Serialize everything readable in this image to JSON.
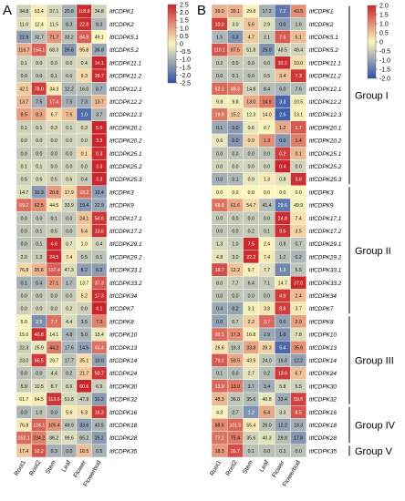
{
  "chart_data": [
    {
      "type": "heatmap",
      "panel_label": "A",
      "columns": [
        "Root1",
        "Root2",
        "Stem",
        "Leaf",
        "Flower",
        "Flowerbud"
      ],
      "rows": [
        "ItfCDPK1",
        "ItfCDPK2",
        "ItfCDPK5.1",
        "ItfCDPK5.2",
        "ItfCDPK11.1",
        "ItfCDPK11.2",
        "ItfCDPK12.1",
        "ItfCDPK12.2",
        "ItfCDPK12.3",
        "ItfCDPK20.1",
        "ItfCDPK20.2",
        "ItfCDPK25.1",
        "ItfCDPK25.2",
        "ItfCDPK25.3",
        "ItfCDPK3",
        "ItfCDPK9",
        "ItfCDPK17.1",
        "ItfCDPK17.2",
        "ItfCDPK29.1",
        "ItfCDPK29.2",
        "ItfCDPK33.1",
        "ItfCDPK33.2",
        "ItfCDPK34",
        "ItfCDPK7",
        "ItfCDPK8",
        "ItfCDPK10",
        "ItfCDPK13",
        "ItfCDPK14",
        "ItfCDPK24",
        "ItfCDPK30",
        "ItfCDPK32",
        "ItfCDPK16",
        "ItfCDPK18",
        "ItfCDPK28",
        "ItfCDPK35"
      ],
      "cell_labels": [
        [
          "34.8",
          "53.4",
          "37.1",
          "20.8",
          "118.8",
          "34.8"
        ],
        [
          "11.0",
          "12.4",
          "11.5",
          "8.3",
          "22.8",
          "8.3"
        ],
        [
          "22.9",
          "32.7",
          "71.7",
          "33.2",
          "84.8",
          "49.1"
        ],
        [
          "116.7",
          "154.1",
          "68.3",
          "26.6",
          "95.8",
          "36.8"
        ],
        [
          "0.1",
          "0.0",
          "0.0",
          "0.0",
          "0.4",
          "14.1"
        ],
        [
          "0.0",
          "0.0",
          "0.1",
          "0.0",
          "9.3",
          "28.7"
        ],
        [
          "42.1",
          "78.0",
          "34.3",
          "12.2",
          "16.0",
          "8.7"
        ],
        [
          "13.7",
          "7.5",
          "17.4",
          "7.5",
          "7.3",
          "13.7"
        ],
        [
          "8.5",
          "8.3",
          "6.7",
          "7.6",
          "1.0",
          "3.7"
        ],
        [
          "0.1",
          "0.1",
          "0.3",
          "0.1",
          "0.3",
          "5.0"
        ],
        [
          "0.0",
          "0.0",
          "0.0",
          "0.0",
          "0.0",
          "3.3"
        ],
        [
          "0.0",
          "0.0",
          "0.0",
          "0.0",
          "0.1",
          "0.3"
        ],
        [
          "0.1",
          "0.1",
          "0.0",
          "0.0",
          "0.0",
          "3.3"
        ],
        [
          "0.5",
          "0.6",
          "0.5",
          "0.6",
          "0.4",
          "3.3"
        ],
        [
          "14.7",
          "10.3",
          "20.8",
          "17.9",
          "23.2",
          "10.4"
        ],
        [
          "69.2",
          "62.5",
          "44.5",
          "33.9",
          "19.4",
          "22.9"
        ],
        [
          "0.0",
          "0.0",
          "0.1",
          "0.0",
          "24.1",
          "54.6"
        ],
        [
          "0.0",
          "0.1",
          "0.5",
          "0.0",
          "5.4",
          "13.6"
        ],
        [
          "0.0",
          "0.1",
          "4.6",
          "0.7",
          "1.0",
          "0.4"
        ],
        [
          "2.0",
          "1.3",
          "24.5",
          "7.4",
          "0.5",
          "0.1"
        ],
        [
          "76.8",
          "95.6",
          "137.4",
          "47.3",
          "8.2",
          "6.3"
        ],
        [
          "0.1",
          "0.4",
          "27.1",
          "1.7",
          "13.7",
          "37.3"
        ],
        [
          "0.0",
          "0.0",
          "0.0",
          "0.0",
          "5.2",
          "17.3"
        ],
        [
          "0.0",
          "0.0",
          "0.0",
          "0.2",
          "0.0",
          "4.1"
        ],
        [
          "5.0",
          "2.5",
          "7.7",
          "4.4",
          "3.5",
          "7.3"
        ],
        [
          "15.0",
          "40.8",
          "14.1",
          "4.8",
          "5.0",
          "13.4"
        ],
        [
          "22.3",
          "25.9",
          "44.2",
          "17.6",
          "14.5",
          "45.4"
        ],
        [
          "23.0",
          "66.5",
          "29.7",
          "17.7",
          "35.1",
          "10.0"
        ],
        [
          "0.0",
          "0.0",
          "4.4",
          "0.2",
          "21.7",
          "50.7"
        ],
        [
          "5.9",
          "10.5",
          "8.7",
          "8.6",
          "60.6",
          "6.9"
        ],
        [
          "61.7",
          "64.5",
          "113.6",
          "51.8",
          "47.9",
          "31.2"
        ],
        [
          "0.0",
          "1.0",
          "0.0",
          "5.6",
          "6.3",
          "16.3"
        ],
        [
          "76.8",
          "124.1",
          "105.4",
          "49.9",
          "33.6",
          "43.5"
        ],
        [
          "252.1",
          "234.2",
          "86.2",
          "99.6",
          "65.2",
          "25.2"
        ],
        [
          "17.4",
          "32.2",
          "0.3",
          "0.0",
          "18.5",
          "0.5"
        ]
      ],
      "colorbar_ticks": [
        "2.5",
        "2.0",
        "1.5",
        "1.0",
        "0.5",
        "0",
        "-0.5",
        "-1.0",
        "-1.5",
        "-2.0",
        "-2.5"
      ],
      "colorbar_range": [
        -2.5,
        2.5
      ],
      "colors": {
        "low": "#2f50a8",
        "mid": "#fbf6be",
        "high": "#c9262c"
      }
    },
    {
      "type": "heatmap",
      "panel_label": "B",
      "columns": [
        "Root1",
        "Root2",
        "Stem",
        "Leaf",
        "Flower",
        "Flowerbud"
      ],
      "rows": [
        "ItfCDPK1",
        "ItfCDPK2",
        "ItfCDPK5.1",
        "ItfCDPK5.2",
        "ItfCDPK11.1",
        "ItfCDPK11.2",
        "ItfCDPK12.1",
        "ItfCDPK12.2",
        "ItfCDPK12.3",
        "ItfCDPK20.1",
        "ItfCDPK20.2",
        "ItfCDPK25.1",
        "ItfCDPK25.2",
        "ItfCDPK25.3",
        "ItfCDPK3",
        "ItfCDPK9",
        "ItfCDPK17.1",
        "ItfCDPK17.2",
        "ItfCDPK29.1",
        "ItfCDPK29.2",
        "ItfCDPK33.1",
        "ItfCDPK33.2",
        "ItfCDPK34",
        "ItfCDPK7",
        "ItfCDPK8",
        "ItfCDPK10",
        "ItfCDPK13",
        "ItfCDPK14",
        "ItfCDPK24",
        "ItfCDPK30",
        "ItfCDPK32",
        "ItfCDPK16",
        "ItfCDPK18",
        "ItfCDPK28",
        "ItfCDPK35"
      ],
      "cell_labels": [
        [
          "39.0",
          "39.1",
          "29.8",
          "17.3",
          "7.2",
          "43.5"
        ],
        [
          "10.0",
          "3.0",
          "5.6",
          "2.9",
          "0.0",
          "1.6"
        ],
        [
          "1.5",
          "0.3",
          "4.7",
          "2.1",
          "7.6",
          "5.1"
        ],
        [
          "110.1",
          "87.5",
          "51.8",
          "25.0",
          "48.5",
          "49.4"
        ],
        [
          "0.2",
          "0.0",
          "0.0",
          "0.0",
          "32.2",
          "10.0"
        ],
        [
          "0.0",
          "0.1",
          "0.0",
          "0.5",
          "3.4",
          "7.3"
        ],
        [
          "52.1",
          "49.3",
          "14.8",
          "8.4",
          "6.0",
          "7.6"
        ],
        [
          "9.8",
          "9.8",
          "13.0",
          "14.9",
          "3.3",
          "10.5"
        ],
        [
          "19.9",
          "15.2",
          "12.3",
          "14.0",
          "2.5",
          "13.1"
        ],
        [
          "0.1",
          "0.0",
          "0.6",
          "0.7",
          "1.2",
          "1.7"
        ],
        [
          "0.6",
          "0.0",
          "0.9",
          "1.3",
          "0.0",
          "1.4"
        ],
        [
          "0.0",
          "0.0",
          "0.0",
          "0.0",
          "0.2",
          "0.1"
        ],
        [
          "0.0",
          "0.0",
          "0.0",
          "0.0",
          "0.4",
          "0.0"
        ],
        [
          "0.0",
          "0.1",
          "0.9",
          "1.3",
          "0.8",
          "3.8"
        ],
        [
          "0.0",
          "0.0",
          "0.0",
          "0.0",
          "0.0",
          "0.0"
        ],
        [
          "68.8",
          "61.6",
          "54.7",
          "41.4",
          "29.6",
          "49.9"
        ],
        [
          "0.0",
          "0.0",
          "0.0",
          "0.0",
          "24.8",
          "7.4"
        ],
        [
          "0.0",
          "0.0",
          "0.2",
          "0.1",
          "9.5",
          "3.5"
        ],
        [
          "1.3",
          "1.0",
          "7.5",
          "2.4",
          "0.8",
          "0.7"
        ],
        [
          "4.8",
          "3.0",
          "22.2",
          "7.4",
          "1.2",
          "0.2"
        ],
        [
          "18.7",
          "12.2",
          "9.7",
          "7.7",
          "1.3",
          "5.5"
        ],
        [
          "8.0",
          "7.7",
          "6.4",
          "7.1",
          "14.7",
          "37.0"
        ],
        [
          "0.0",
          "0.0",
          "0.0",
          "0.0",
          "4.9",
          "2.4"
        ],
        [
          "0.4",
          "0.2",
          "3.1",
          "3.8",
          "8.8",
          "3.7"
        ],
        [
          "0.0",
          "0.7",
          "2.2",
          "3.7",
          "0.0",
          "2.9"
        ],
        [
          "20.1",
          "17.3",
          "10.8",
          "2.9",
          "1.0",
          "7.8"
        ],
        [
          "26.6",
          "18.3",
          "33.8",
          "28.3",
          "5.4",
          "35.6"
        ],
        [
          "79.2",
          "59.5",
          "43.9",
          "24.0",
          "16.8",
          "12.2"
        ],
        [
          "0.1",
          "0.0",
          "2.7",
          "0.2",
          "13.9",
          "6.7"
        ],
        [
          "13.9",
          "13.0",
          "3.7",
          "3.4",
          "5.8",
          "5.5"
        ],
        [
          "48.3",
          "36.8",
          "35.6",
          "40.8",
          "33.4",
          "59.6"
        ],
        [
          "4.3",
          "2.7",
          "1.2",
          "6.4",
          "3.3",
          "8.5"
        ],
        [
          "88.6",
          "101.5",
          "55.4",
          "26.0",
          "12.2",
          "18.3"
        ],
        [
          "77.1",
          "75.4",
          "35.6",
          "40.3",
          "29.8",
          "17.8"
        ],
        [
          "18.3",
          "26.7",
          "0.1",
          "0.0",
          "0.1",
          "0.0"
        ]
      ],
      "groups": [
        {
          "name": "Group I",
          "start": 0,
          "end": 13
        },
        {
          "name": "Group II",
          "start": 14,
          "end": 23
        },
        {
          "name": "Group III",
          "start": 24,
          "end": 30
        },
        {
          "name": "Group IV",
          "start": 31,
          "end": 33
        },
        {
          "name": "Group V",
          "start": 34,
          "end": 34
        }
      ],
      "colorbar_ticks": [
        "2.0",
        "1.5",
        "1.0",
        "0.5",
        "0",
        "-0.5",
        "-1.0",
        "-1.5",
        "-2.0"
      ],
      "colorbar_range": [
        -2.0,
        2.0
      ],
      "colors": {
        "low": "#2f50a8",
        "mid": "#fbf6be",
        "high": "#c9262c"
      }
    }
  ]
}
